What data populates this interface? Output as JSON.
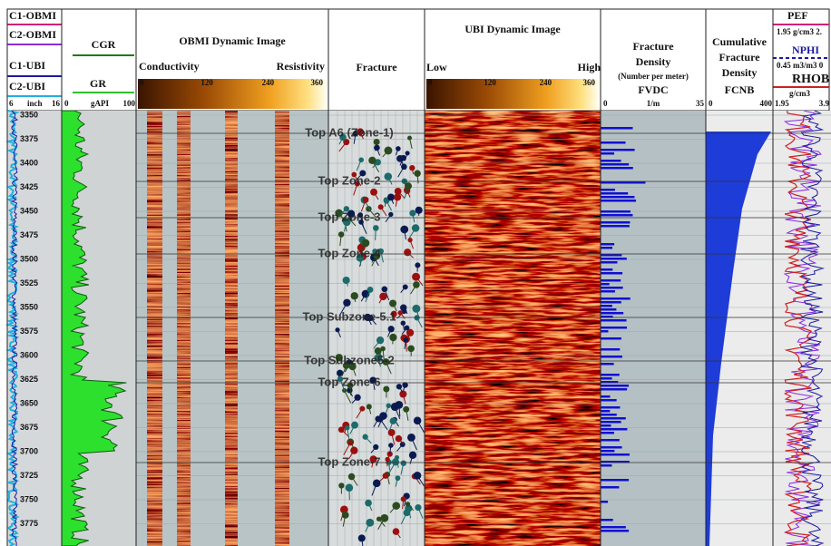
{
  "track1": {
    "curves": [
      "C1-OBMI",
      "C2-OBMI",
      "C1-UBI",
      "C2-UBI"
    ],
    "scale": [
      6,
      "inch",
      16
    ]
  },
  "track2": {
    "curves": [
      "CGR",
      "GR"
    ],
    "scale": [
      0,
      "gAPI",
      100
    ]
  },
  "track3": {
    "title": "OBMI Dynamic Image",
    "low": "Conductivity",
    "high": "Resistivity",
    "scale": [
      0,
      120,
      240,
      360
    ]
  },
  "track4": {
    "title": "Fracture"
  },
  "track5": {
    "title": "UBI Dynamic Image",
    "low": "Low",
    "high": "High",
    "scale": [
      0,
      120,
      240,
      360
    ]
  },
  "track6": {
    "title": [
      "Fracture",
      "Density",
      "(Number per meter)",
      "FVDC"
    ],
    "scale": [
      0,
      "1/m",
      35
    ]
  },
  "track7": {
    "title": [
      "Cumulative",
      "Fracture",
      "Density",
      "FCNB"
    ],
    "scale": [
      0,
      400
    ]
  },
  "track8": {
    "curves": [
      "PEF",
      "1.95  g/cm3  2.",
      "NPHI",
      "0.45  m3/m3  0",
      "RHOB",
      "g/cm3"
    ],
    "scale": [
      1.95,
      3.9
    ]
  },
  "depths": [
    3350,
    3375,
    3400,
    3425,
    3450,
    3475,
    3500,
    3525,
    3550,
    3575,
    3600,
    3625,
    3650,
    3675,
    3700,
    3725,
    3750,
    3775
  ],
  "zones": [
    "Top A6 (Zone-1)",
    "Top Zone-2",
    "Top Zone-3",
    "Top Zone-4",
    "Top Subzone-5.1",
    "Top Subzone5-2",
    "Top Zone-6",
    "Top Zone-7"
  ]
}
